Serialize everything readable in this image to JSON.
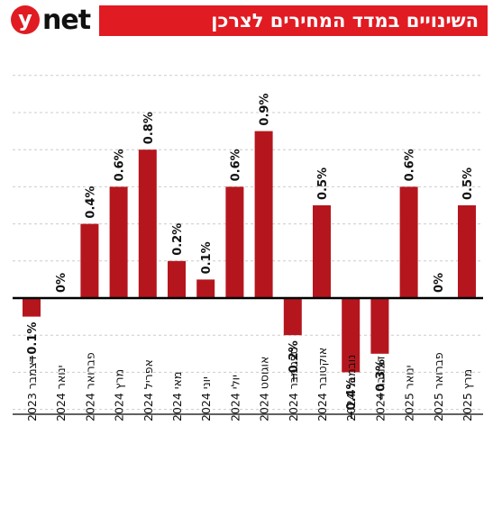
{
  "header": {
    "logo_mark": "y",
    "logo_text": "net",
    "title": "השינויים במדד המחירים לצרכן"
  },
  "colors": {
    "bar": "#b5161e",
    "accent": "#e11b22",
    "grid": "#cccccc",
    "axis": "#000000"
  },
  "chart_data": {
    "type": "bar",
    "title": "השינויים במדד המחירים לצרכן",
    "xlabel": "",
    "ylabel": "",
    "ylim": [
      -0.6,
      1.2
    ],
    "grid": true,
    "categories": [
      "דצמבר 2023",
      "ינואר 2024",
      "פברואר 2024",
      "מרץ 2024",
      "אפריל 2024",
      "מאי 2024",
      "יוני 2024",
      "יולי 2024",
      "אוגוסט 2024",
      "ספטמבר 2024",
      "אוקטובר 2024",
      "נובמבר 2024",
      "דצמבר 2024",
      "ינואר 2025",
      "פברואר 2025",
      "מרץ 2025"
    ],
    "values": [
      -0.1,
      0,
      0.4,
      0.6,
      0.8,
      0.2,
      0.1,
      0.6,
      0.9,
      -0.2,
      0.5,
      -0.4,
      -0.3,
      0.6,
      0,
      0.5
    ],
    "labels": [
      "−0.1%",
      "0%",
      "0.4%",
      "0.6%",
      "0.8%",
      "0.2%",
      "0.1%",
      "0.6%",
      "0.9%",
      "−0.2%",
      "0.5%",
      "−0.4%",
      "−0.3%",
      "0.6%",
      "0%",
      "0.5%"
    ]
  }
}
